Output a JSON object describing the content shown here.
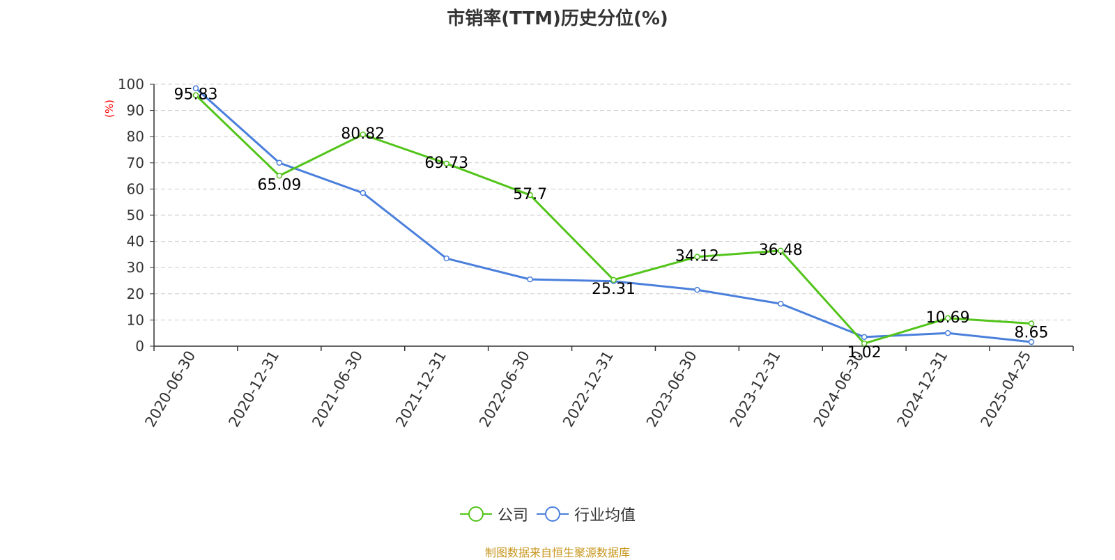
{
  "title": "市销率(TTM)历史分位(%)",
  "source_note": "制图数据来自恒生聚源数据库",
  "colors": {
    "company": "#52c41a",
    "industry": "#4a7fdb",
    "axis": "#333333",
    "grid": "#cccccc",
    "unit": "#ff0000"
  },
  "chart_data": {
    "type": "line",
    "title": "市销率(TTM)历史分位(%)",
    "xlabel": "",
    "ylabel": "(%)",
    "ylim": [
      0,
      100
    ],
    "yticks": [
      0,
      10,
      20,
      30,
      40,
      50,
      60,
      70,
      80,
      90,
      100
    ],
    "grid": true,
    "legend_position": "bottom-center",
    "categories": [
      "2020-06-30",
      "2020-12-31",
      "2021-06-30",
      "2021-12-31",
      "2022-06-30",
      "2022-12-31",
      "2023-06-30",
      "2023-12-31",
      "2024-06-30",
      "2024-12-31",
      "2025-04-25"
    ],
    "series": [
      {
        "name": "公司",
        "values": [
          95.83,
          65.09,
          80.82,
          69.73,
          57.7,
          25.31,
          34.12,
          36.48,
          1.02,
          10.69,
          8.65
        ],
        "show_labels": true
      },
      {
        "name": "行业均值",
        "values": [
          98.5,
          70.0,
          58.5,
          33.5,
          25.5,
          24.8,
          21.5,
          16.2,
          3.5,
          5.0,
          1.6
        ],
        "show_labels": false
      }
    ]
  }
}
